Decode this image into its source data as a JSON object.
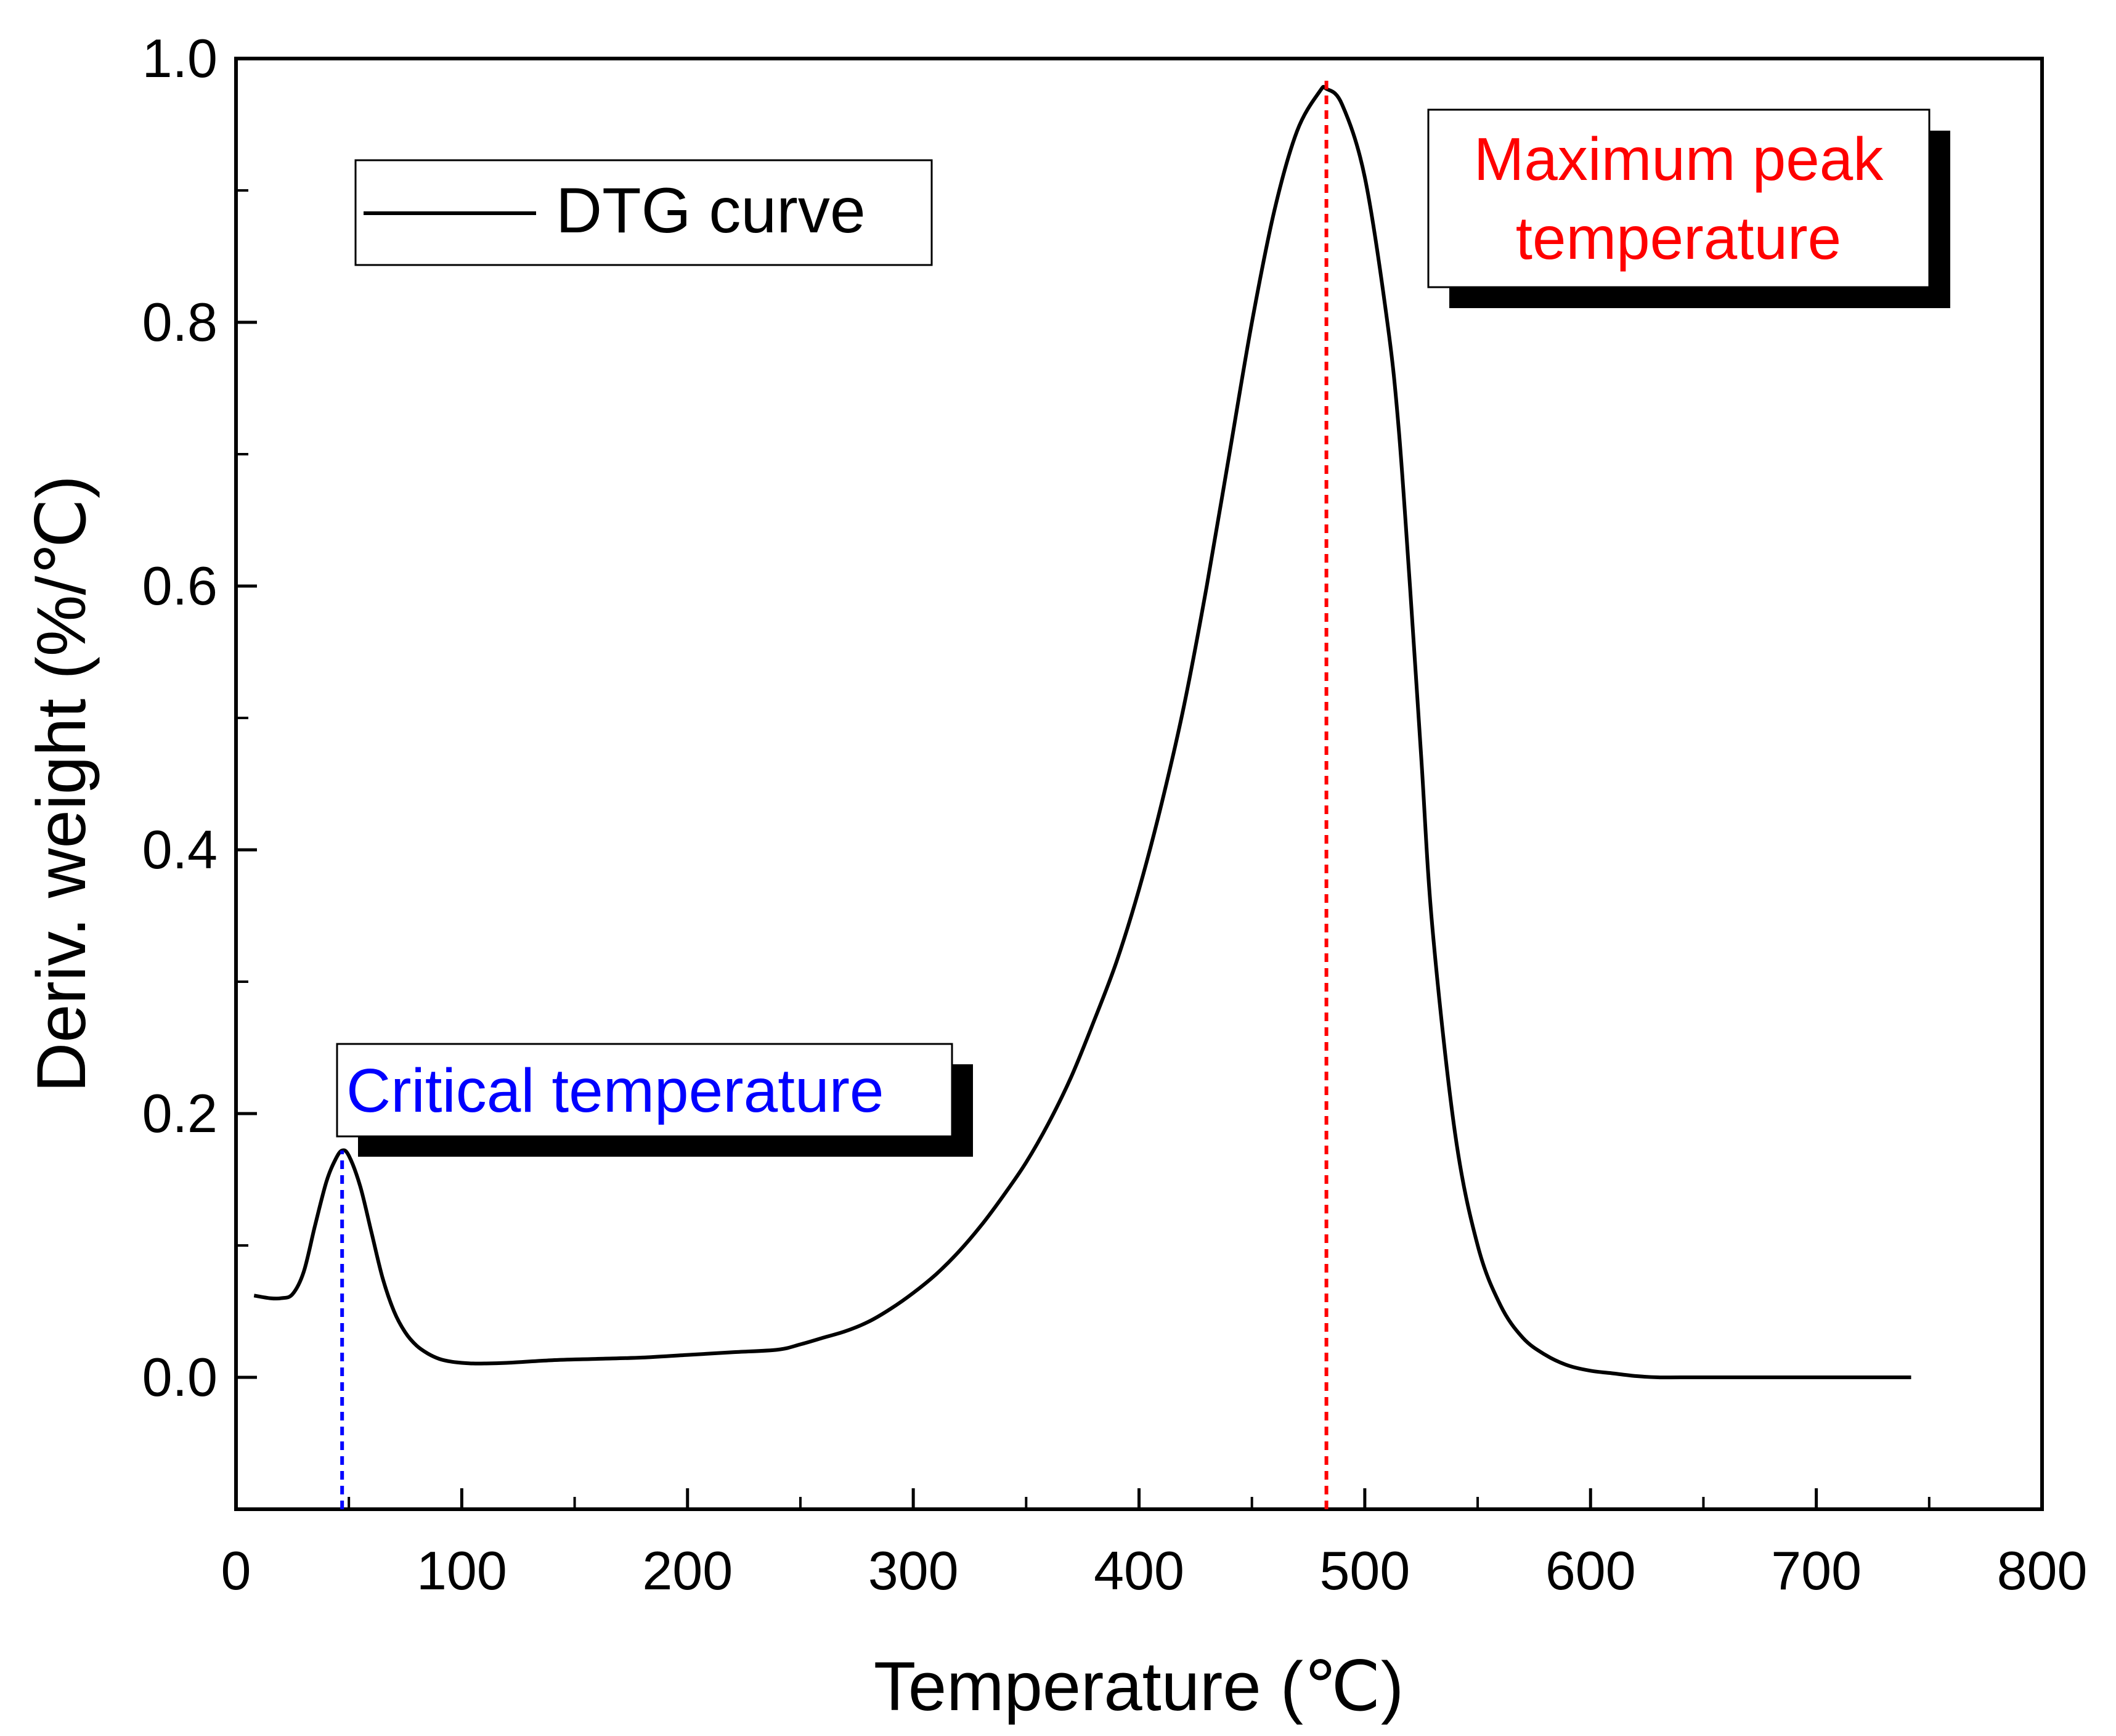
{
  "chart_data": {
    "type": "line",
    "xlabel": "Temperature (℃)",
    "ylabel": "Deriv. weight (%/℃)",
    "xlim": [
      0,
      800
    ],
    "ylim": [
      -0.1,
      1.0
    ],
    "x_ticks": [
      0,
      100,
      200,
      300,
      400,
      500,
      600,
      700,
      800
    ],
    "y_ticks": [
      0.0,
      0.2,
      0.4,
      0.6,
      0.8,
      1.0
    ],
    "x_tick_labels": [
      "0",
      "100",
      "200",
      "300",
      "400",
      "500",
      "600",
      "700",
      "800"
    ],
    "y_tick_labels": [
      "0.0",
      "0.2",
      "0.4",
      "0.6",
      "0.8",
      "1.0"
    ],
    "grid": false,
    "legend": {
      "position": "top-left",
      "entries": [
        "DTG curve"
      ]
    },
    "series": [
      {
        "name": "DTG curve",
        "color": "#000000",
        "x": [
          8,
          15,
          20,
          25,
          30,
          35,
          40,
          44,
          47,
          50,
          55,
          60,
          65,
          70,
          75,
          80,
          85,
          90,
          95,
          100,
          105,
          110,
          120,
          140,
          160,
          180,
          200,
          220,
          240,
          250,
          260,
          270,
          280,
          290,
          300,
          310,
          320,
          330,
          340,
          350,
          360,
          370,
          380,
          390,
          400,
          410,
          420,
          430,
          440,
          450,
          460,
          470,
          480,
          483,
          490,
          500,
          510,
          515,
          520,
          525,
          530,
          540,
          550,
          560,
          570,
          580,
          590,
          600,
          610,
          620,
          630,
          640,
          660,
          680,
          700,
          720,
          742
        ],
        "y": [
          0.062,
          0.06,
          0.06,
          0.063,
          0.08,
          0.115,
          0.148,
          0.165,
          0.172,
          0.168,
          0.145,
          0.11,
          0.075,
          0.05,
          0.034,
          0.024,
          0.018,
          0.014,
          0.012,
          0.011,
          0.0105,
          0.0105,
          0.011,
          0.013,
          0.014,
          0.015,
          0.017,
          0.019,
          0.021,
          0.025,
          0.03,
          0.035,
          0.042,
          0.052,
          0.064,
          0.078,
          0.095,
          0.115,
          0.138,
          0.163,
          0.193,
          0.228,
          0.27,
          0.315,
          0.37,
          0.435,
          0.51,
          0.6,
          0.7,
          0.8,
          0.885,
          0.945,
          0.975,
          0.977,
          0.965,
          0.91,
          0.8,
          0.72,
          0.6,
          0.47,
          0.34,
          0.185,
          0.1,
          0.055,
          0.03,
          0.017,
          0.009,
          0.005,
          0.003,
          0.001,
          0.0,
          0.0,
          0.0,
          0.0,
          0.0,
          0.0,
          0.0
        ]
      }
    ],
    "annotations": [
      {
        "label": "Critical temperature",
        "x": 47,
        "y": 0.172,
        "color": "#0000ff"
      },
      {
        "label": "Maximum peak temperature",
        "line1": "Maximum peak",
        "line2": "temperature",
        "x": 483,
        "y": 0.977,
        "color": "#ff0000"
      }
    ]
  }
}
